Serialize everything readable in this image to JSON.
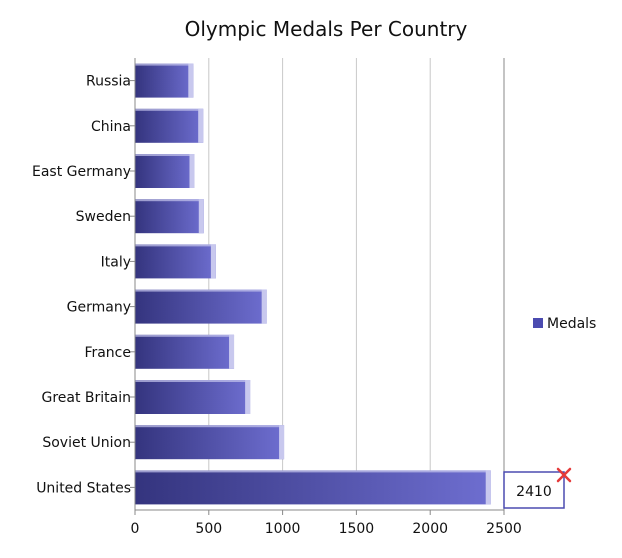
{
  "chart_data": {
    "type": "bar",
    "orientation": "horizontal",
    "title": "Olympic Medals Per Country",
    "categories": [
      "Russia",
      "China",
      "East Germany",
      "Sweden",
      "Italy",
      "Germany",
      "France",
      "Great Britain",
      "Soviet Union",
      "United States"
    ],
    "series": [
      {
        "name": "Medals",
        "values": [
          395,
          462,
          403,
          466,
          548,
          892,
          671,
          780,
          1010,
          2410
        ],
        "color": "#4b4bb0"
      }
    ],
    "x_ticks": [
      "0",
      "500",
      "1000",
      "1500",
      "2000",
      "2500"
    ],
    "xlim": [
      0,
      2500
    ],
    "grid": "vertical",
    "legend": "right",
    "tooltip": {
      "category": "United States",
      "value_label": "2410"
    }
  },
  "colors": {
    "bar_dark": "#34347e",
    "bar_light": "#6e6ed0",
    "bar_highlight": "#c8c8ee",
    "axis": "#888888",
    "grid": "#c8c8c8",
    "tooltip_border": "#4b4bb0",
    "close_mark": "#e53a3a"
  },
  "icons": {
    "tooltip_close": "close-x-icon",
    "legend_swatch": "square-swatch"
  }
}
